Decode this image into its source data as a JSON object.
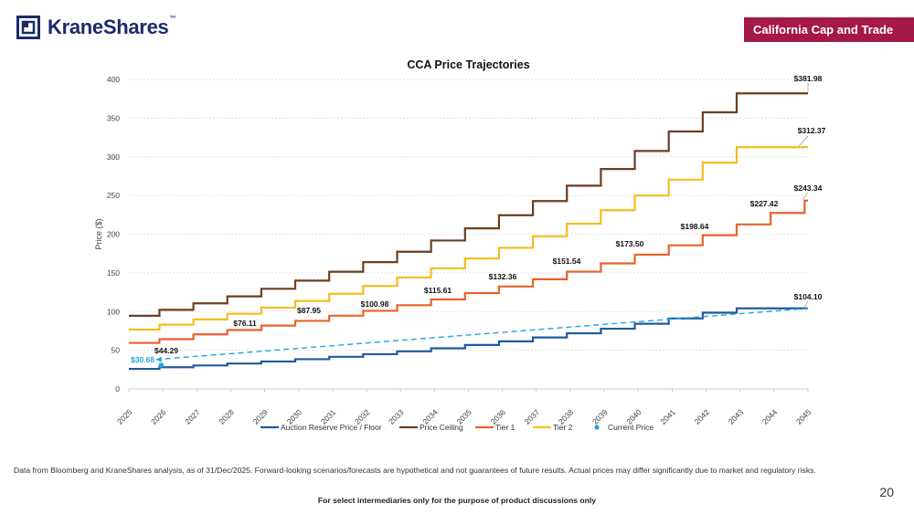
{
  "brand": {
    "name": "KraneShares",
    "tm": "™"
  },
  "section_label": "California Cap and Trade",
  "footnote": "Data from Bloomberg and KraneShares analysis, as of 31/Dec/2025. Forward-looking scenarios/forecasts are hypothetical and not guarantees of future results. Actual prices may differ significantly due to market and regulatory risks.",
  "disclaimer": "For select intermediaries only for the purpose of product discussions only",
  "page_number": "20",
  "colors": {
    "brand_navy": "#1b2b6b",
    "badge": "#a5194a",
    "floor": "#1f5aa0",
    "ceiling": "#6b3f1f",
    "tier1": "#e8622a",
    "tier2": "#f4be1c",
    "current": "#22a5dc"
  },
  "chart_data": {
    "type": "line",
    "title": "CCA Price Trajectories",
    "ylabel": "Price ($)",
    "xlabel": "",
    "ylim": [
      0,
      400
    ],
    "yticks": [
      0,
      50,
      100,
      150,
      200,
      250,
      300,
      350,
      400
    ],
    "categories": [
      "2025",
      "2026",
      "2027",
      "2028",
      "2029",
      "2030",
      "2031",
      "2032",
      "2033",
      "2034",
      "2035",
      "2036",
      "2037",
      "2038",
      "2039",
      "2040",
      "2041",
      "2042",
      "2043",
      "2044",
      "2045"
    ],
    "series": [
      {
        "name": "Auction Reserve Price / Floor",
        "color": "#1f5aa0",
        "style": "step",
        "values": [
          25.87,
          28.0,
          30.3,
          32.8,
          35.5,
          38.4,
          41.5,
          44.9,
          48.6,
          52.5,
          56.8,
          61.5,
          66.5,
          71.9,
          77.8,
          84.2,
          91.1,
          98.5,
          104.1,
          104.1,
          104.1
        ]
      },
      {
        "name": "Price Ceiling",
        "color": "#6b3f1f",
        "style": "step",
        "values": [
          94.5,
          102.2,
          110.6,
          119.6,
          129.4,
          140.0,
          151.5,
          163.9,
          177.3,
          191.8,
          207.5,
          224.5,
          242.8,
          262.7,
          284.2,
          307.5,
          332.7,
          357.5,
          381.98,
          381.98,
          381.98
        ]
      },
      {
        "name": "Tier 1",
        "color": "#e8622a",
        "style": "step",
        "values": [
          59.5,
          64.3,
          70.5,
          76.11,
          81.9,
          87.95,
          94.6,
          100.98,
          108.2,
          115.61,
          123.8,
          132.36,
          141.7,
          151.54,
          162.2,
          173.5,
          185.6,
          198.64,
          212.6,
          227.42,
          243.34
        ]
      },
      {
        "name": "Tier 2",
        "color": "#f4be1c",
        "style": "step",
        "values": [
          76.7,
          83.0,
          89.8,
          97.1,
          105.1,
          113.7,
          123.0,
          133.1,
          144.0,
          155.8,
          168.6,
          182.4,
          197.3,
          213.5,
          231.0,
          249.9,
          270.4,
          292.5,
          312.37,
          312.37,
          312.37
        ]
      }
    ],
    "trend": {
      "name": "Current Price trend",
      "color": "#22a5dc",
      "start": [
        "2025.8",
        38
      ],
      "end": [
        "2045",
        104.1
      ]
    },
    "current_price": {
      "name": "Current Price",
      "color": "#22a5dc",
      "x": "2025.95",
      "value": 30.68,
      "label": "$30.68"
    },
    "data_labels": [
      {
        "text": "$44.29",
        "series": "Current Price"
      },
      {
        "text": "$76.11",
        "series": "Tier 1",
        "year": "2028"
      },
      {
        "text": "$87.95",
        "series": "Tier 1",
        "year": "2030"
      },
      {
        "text": "$100.98",
        "series": "Tier 1",
        "year": "2032"
      },
      {
        "text": "$115.61",
        "series": "Tier 1",
        "year": "2034"
      },
      {
        "text": "$132.36",
        "series": "Tier 1",
        "year": "2036"
      },
      {
        "text": "$151.54",
        "series": "Tier 1",
        "year": "2038"
      },
      {
        "text": "$173.50",
        "series": "Tier 1",
        "year": "2040"
      },
      {
        "text": "$198.64",
        "series": "Tier 1",
        "year": "2042"
      },
      {
        "text": "$227.42",
        "series": "Tier 1",
        "year": "2044"
      },
      {
        "text": "$243.34",
        "series": "Tier 1",
        "year": "2045"
      },
      {
        "text": "$312.37",
        "series": "Tier 2",
        "year": "2045"
      },
      {
        "text": "$381.98",
        "series": "Price Ceiling",
        "year": "2045"
      },
      {
        "text": "$104.10",
        "series": "Auction Reserve Price / Floor",
        "year": "2045"
      }
    ],
    "legend": [
      "Auction Reserve Price / Floor",
      "Price Ceiling",
      "Tier 1",
      "Tier 2",
      "Current Price"
    ],
    "legend_position": "bottom",
    "grid": true
  }
}
